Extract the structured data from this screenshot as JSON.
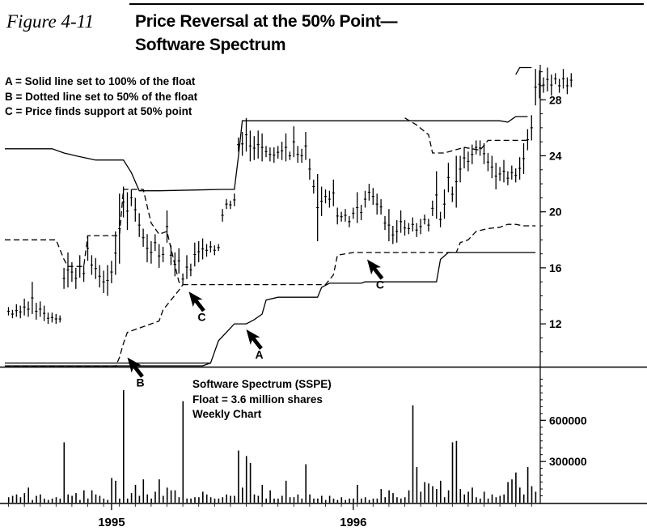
{
  "figure_label": "Figure 4-11",
  "title_line1": "Price Reversal at the 50% Point—",
  "title_line2": "Software Spectrum",
  "legend": [
    "A = Solid line set to 100% of the float",
    "B = Dotted line set to 50% of the float",
    "C = Price finds support at 50% point"
  ],
  "info": [
    "Software Spectrum (SSPE)",
    "Float = 3.6 million shares",
    "Weekly Chart"
  ],
  "colors": {
    "ink": "#000000",
    "background": "#ffffff"
  },
  "chart_data": [
    {
      "type": "line",
      "panel": "price",
      "x_unit": "week",
      "x_range": [
        0,
        132
      ],
      "ylim": [
        9.0,
        30.5
      ],
      "y_ticks": [
        12,
        16,
        20,
        24,
        28
      ],
      "x_tick_labels": [
        {
          "label": "1995",
          "x": 26
        },
        {
          "label": "1996",
          "x": 87
        }
      ],
      "grid": false,
      "price_bars": [
        [
          12.6,
          13.2
        ],
        [
          12.4,
          13.0
        ],
        [
          12.5,
          13.4
        ],
        [
          12.4,
          13.3
        ],
        [
          12.6,
          13.8
        ],
        [
          12.5,
          13.6
        ],
        [
          12.7,
          15.0
        ],
        [
          12.3,
          13.5
        ],
        [
          12.5,
          13.6
        ],
        [
          12.2,
          13.3
        ],
        [
          12.0,
          12.8
        ],
        [
          12.1,
          12.8
        ],
        [
          12.0,
          12.7
        ],
        [
          12.1,
          12.6
        ],
        [
          14.5,
          16.0
        ],
        [
          14.6,
          17.1
        ],
        [
          15.0,
          16.4
        ],
        [
          14.5,
          16.0
        ],
        [
          15.3,
          16.9
        ],
        [
          15.0,
          16.2
        ],
        [
          16.5,
          18.3
        ],
        [
          15.5,
          16.9
        ],
        [
          15.2,
          16.7
        ],
        [
          14.6,
          16.2
        ],
        [
          14.2,
          15.8
        ],
        [
          14.0,
          16.2
        ],
        [
          14.9,
          16.5
        ],
        [
          15.5,
          18.6
        ],
        [
          16.3,
          21.3
        ],
        [
          19.6,
          21.8
        ],
        [
          18.7,
          21.4
        ],
        [
          20.4,
          21.6
        ],
        [
          19.3,
          21.0
        ],
        [
          18.2,
          19.9
        ],
        [
          17.5,
          18.8
        ],
        [
          16.4,
          18.4
        ],
        [
          16.3,
          17.9
        ],
        [
          17.2,
          18.4
        ],
        [
          16.0,
          17.7
        ],
        [
          16.4,
          17.5
        ],
        [
          17.8,
          20.1
        ],
        [
          16.2,
          17.6
        ],
        [
          15.4,
          17.1
        ],
        [
          15.6,
          17.4
        ],
        [
          14.8,
          15.6
        ],
        [
          15.2,
          16.9
        ],
        [
          15.4,
          16.3
        ],
        [
          16.1,
          17.8
        ],
        [
          16.4,
          17.9
        ],
        [
          16.6,
          18.1
        ],
        [
          16.8,
          17.7
        ],
        [
          17.1,
          17.9
        ],
        [
          16.9,
          17.6
        ],
        [
          17.2,
          17.7
        ],
        [
          19.3,
          20.2
        ],
        [
          20.2,
          20.9
        ],
        [
          20.2,
          20.8
        ],
        [
          20.4,
          21.3
        ],
        [
          24.3,
          25.3
        ],
        [
          24.0,
          25.7
        ],
        [
          24.3,
          26.7
        ],
        [
          23.6,
          25.8
        ],
        [
          23.7,
          25.4
        ],
        [
          23.8,
          25.8
        ],
        [
          23.6,
          25.6
        ],
        [
          23.9,
          24.7
        ],
        [
          23.6,
          24.6
        ],
        [
          23.5,
          24.6
        ],
        [
          23.8,
          24.7
        ],
        [
          23.7,
          25.0
        ],
        [
          23.6,
          25.6
        ],
        [
          23.7,
          24.3
        ],
        [
          23.9,
          26.1
        ],
        [
          23.5,
          24.7
        ],
        [
          23.5,
          24.5
        ],
        [
          23.7,
          25.7
        ],
        [
          22.3,
          23.8
        ],
        [
          21.3,
          22.3
        ],
        [
          17.9,
          22.7
        ],
        [
          19.7,
          21.8
        ],
        [
          20.6,
          21.6
        ],
        [
          20.3,
          21.5
        ],
        [
          20.4,
          22.3
        ],
        [
          19.1,
          20.3
        ],
        [
          19.3,
          20.0
        ],
        [
          19.3,
          20.2
        ],
        [
          18.9,
          19.7
        ],
        [
          19.5,
          20.3
        ],
        [
          19.2,
          21.4
        ],
        [
          19.4,
          20.5
        ],
        [
          20.3,
          21.5
        ],
        [
          20.8,
          22.0
        ],
        [
          20.5,
          21.7
        ],
        [
          19.8,
          21.3
        ],
        [
          19.8,
          20.9
        ],
        [
          18.7,
          19.7
        ],
        [
          17.9,
          20.2
        ],
        [
          17.7,
          19.0
        ],
        [
          17.8,
          19.4
        ],
        [
          18.5,
          20.1
        ],
        [
          18.3,
          19.4
        ],
        [
          18.4,
          19.2
        ],
        [
          18.6,
          19.6
        ],
        [
          18.2,
          19.2
        ],
        [
          18.4,
          19.5
        ],
        [
          19.1,
          19.8
        ],
        [
          18.6,
          19.5
        ],
        [
          19.7,
          20.8
        ],
        [
          19.5,
          22.9
        ],
        [
          18.9,
          20.0
        ],
        [
          19.5,
          21.6
        ],
        [
          21.4,
          23.5
        ],
        [
          20.7,
          21.8
        ],
        [
          20.3,
          24.0
        ],
        [
          22.1,
          24.0
        ],
        [
          23.1,
          24.6
        ],
        [
          22.9,
          24.3
        ],
        [
          23.4,
          24.8
        ],
        [
          24.1,
          25.1
        ],
        [
          24.0,
          25.1
        ],
        [
          23.4,
          24.9
        ],
        [
          22.9,
          24.2
        ],
        [
          22.4,
          24.0
        ],
        [
          21.6,
          23.5
        ],
        [
          22.2,
          23.2
        ],
        [
          22.1,
          23.7
        ],
        [
          21.9,
          22.9
        ],
        [
          22.3,
          23.3
        ],
        [
          22.1,
          23.1
        ],
        [
          22.3,
          23.9
        ],
        [
          22.7,
          24.9
        ],
        [
          24.4,
          25.9
        ],
        [
          25.1,
          26.9
        ],
        [
          27.6,
          30.2
        ],
        [
          28.1,
          30.1
        ],
        [
          28.5,
          29.6
        ],
        [
          28.6,
          30.3
        ],
        [
          28.3,
          29.8
        ],
        [
          29.1,
          29.9
        ],
        [
          28.5,
          29.5
        ],
        [
          28.8,
          30.2
        ],
        [
          28.4,
          29.6
        ],
        [
          28.9,
          29.9
        ]
      ],
      "series": [
        {
          "name": "A",
          "style": "solid",
          "points": [
            [
              -2,
              9.2
            ],
            [
              51,
              9.2
            ],
            [
              53,
              10.8
            ],
            [
              56,
              11.7
            ],
            [
              57,
              12.0
            ],
            [
              60,
              12.0
            ],
            [
              62,
              12.3
            ],
            [
              64,
              12.7
            ],
            [
              65,
              13.7
            ],
            [
              68,
              13.9
            ],
            [
              69,
              13.9
            ],
            [
              78,
              13.9
            ],
            [
              79,
              14.6
            ],
            [
              81,
              14.9
            ],
            [
              89,
              14.9
            ],
            [
              90,
              15.0
            ],
            [
              108,
              15.0
            ],
            [
              109,
              16.6
            ],
            [
              111,
              17.1
            ],
            [
              128,
              17.1
            ],
            [
              133,
              17.1
            ]
          ]
        },
        {
          "name": "B",
          "style": "dashed",
          "points": [
            [
              -2,
              18.0
            ],
            [
              12,
              18.0
            ],
            [
              14,
              16.6
            ],
            [
              15,
              16.1
            ],
            [
              19,
              16.1
            ],
            [
              20,
              18.3
            ],
            [
              28,
              18.3
            ],
            [
              29,
              21.6
            ],
            [
              34,
              21.6
            ],
            [
              36,
              19.2
            ],
            [
              38,
              18.4
            ],
            [
              40,
              18.6
            ],
            [
              43,
              15.0
            ],
            [
              44,
              14.8
            ],
            [
              80,
              14.8
            ],
            [
              82,
              15.5
            ],
            [
              83,
              16.9
            ],
            [
              87,
              17.1
            ],
            [
              113,
              17.1
            ],
            [
              114,
              17.8
            ],
            [
              116,
              18.0
            ],
            [
              118,
              18.6
            ],
            [
              121,
              18.8
            ],
            [
              124,
              18.9
            ],
            [
              126,
              19.1
            ],
            [
              128,
              19.1
            ],
            [
              130,
              19.0
            ],
            [
              133,
              19.0
            ]
          ]
        },
        {
          "name": "B upper",
          "style": "dashed",
          "points": [
            [
              100,
              26.7
            ],
            [
              103,
              26.2
            ],
            [
              106,
              25.5
            ],
            [
              107,
              24.2
            ],
            [
              110,
              24.2
            ],
            [
              115,
              24.6
            ],
            [
              119,
              24.4
            ],
            [
              121,
              25.1
            ],
            [
              124,
              25.1
            ],
            [
              131,
              25.1
            ]
          ]
        },
        {
          "name": "",
          "style": "solid",
          "points": [
            [
              -2,
              24.5
            ],
            [
              11,
              24.5
            ],
            [
              14,
              24.2
            ],
            [
              17,
              24.0
            ],
            [
              22,
              23.7
            ],
            [
              29,
              23.7
            ],
            [
              31,
              22.8
            ],
            [
              33,
              21.5
            ],
            [
              38,
              21.5
            ],
            [
              54,
              21.6
            ],
            [
              57,
              21.6
            ],
            [
              58,
              23.9
            ],
            [
              59,
              26.5
            ],
            [
              61,
              26.5
            ],
            [
              124,
              26.5
            ],
            [
              126,
              26.4
            ],
            [
              128,
              26.8
            ],
            [
              131,
              26.8
            ]
          ]
        },
        {
          "name": "",
          "style": "solid",
          "points": [
            [
              -2,
              9.0
            ],
            [
              49,
              9.0
            ],
            [
              51,
              9.2
            ]
          ]
        },
        {
          "name": "",
          "style": "dashed",
          "points": [
            [
              -2,
              8.95
            ],
            [
              27,
              8.95
            ],
            [
              28,
              9.6
            ],
            [
              29,
              10.6
            ],
            [
              30,
              11.4
            ],
            [
              33,
              11.7
            ],
            [
              36,
              12.0
            ],
            [
              38,
              12.2
            ],
            [
              39,
              13.0
            ],
            [
              41,
              13.7
            ],
            [
              43,
              14.4
            ],
            [
              44,
              14.8
            ]
          ]
        },
        {
          "name": "",
          "style": "solid",
          "points": [
            [
              128,
              29.8
            ],
            [
              129,
              30.3
            ],
            [
              132,
              30.3
            ]
          ]
        }
      ],
      "annotations": [
        {
          "label": "A",
          "x": 60,
          "y": 11.6
        },
        {
          "label": "B",
          "x": 30,
          "y": 9.6
        },
        {
          "label": "C",
          "x": 45.5,
          "y": 14.3
        },
        {
          "label": "C",
          "x": 90.5,
          "y": 16.6
        }
      ]
    },
    {
      "type": "bar",
      "panel": "volume",
      "ylim": [
        0,
        950000
      ],
      "y_ticks": [
        300000,
        600000
      ],
      "values": [
        40000,
        50000,
        60000,
        40000,
        70000,
        110000,
        20000,
        50000,
        60000,
        30000,
        20000,
        30000,
        40000,
        30000,
        440000,
        60000,
        50000,
        70000,
        20000,
        90000,
        30000,
        90000,
        60000,
        50000,
        30000,
        20000,
        180000,
        160000,
        30000,
        820000,
        30000,
        70000,
        130000,
        50000,
        170000,
        60000,
        30000,
        80000,
        170000,
        50000,
        110000,
        90000,
        90000,
        40000,
        740000,
        30000,
        30000,
        40000,
        40000,
        80000,
        60000,
        40000,
        30000,
        30000,
        40000,
        60000,
        50000,
        50000,
        380000,
        110000,
        340000,
        290000,
        60000,
        50000,
        130000,
        30000,
        90000,
        30000,
        30000,
        50000,
        160000,
        40000,
        40000,
        60000,
        30000,
        280000,
        60000,
        30000,
        30000,
        50000,
        20000,
        50000,
        30000,
        20000,
        40000,
        20000,
        30000,
        30000,
        130000,
        30000,
        40000,
        20000,
        30000,
        30000,
        100000,
        40000,
        90000,
        70000,
        40000,
        30000,
        40000,
        90000,
        710000,
        260000,
        80000,
        150000,
        140000,
        120000,
        100000,
        160000,
        40000,
        90000,
        440000,
        450000,
        100000,
        60000,
        80000,
        110000,
        40000,
        30000,
        80000,
        30000,
        60000,
        40000,
        50000,
        60000,
        150000,
        170000,
        220000,
        110000,
        60000,
        260000,
        120000,
        80000
      ]
    }
  ]
}
